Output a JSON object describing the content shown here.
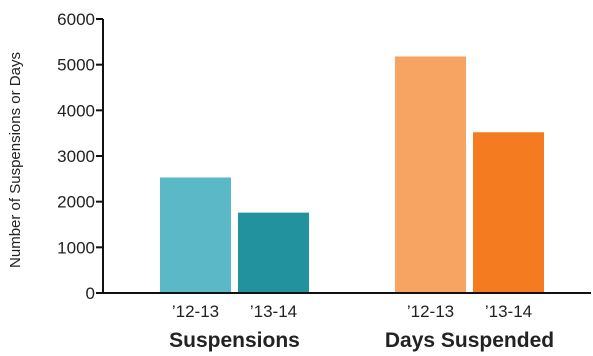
{
  "chart_data": {
    "type": "bar",
    "ylabel": "Number of Suspensions or Days",
    "ylim": [
      0,
      6000
    ],
    "y_ticks": [
      0,
      1000,
      2000,
      3000,
      4000,
      5000,
      6000
    ],
    "grid": false,
    "groups": [
      {
        "label": "Suspensions",
        "bars": [
          {
            "category": "’12-13",
            "value": 2530,
            "color": "#5bb8c7"
          },
          {
            "category": "’13-14",
            "value": 1760,
            "color": "#22939e"
          }
        ]
      },
      {
        "label": "Days Suspended",
        "bars": [
          {
            "category": "’12-13",
            "value": 5180,
            "color": "#f7a462"
          },
          {
            "category": "’13-14",
            "value": 3520,
            "color": "#f47b20"
          }
        ]
      }
    ]
  }
}
